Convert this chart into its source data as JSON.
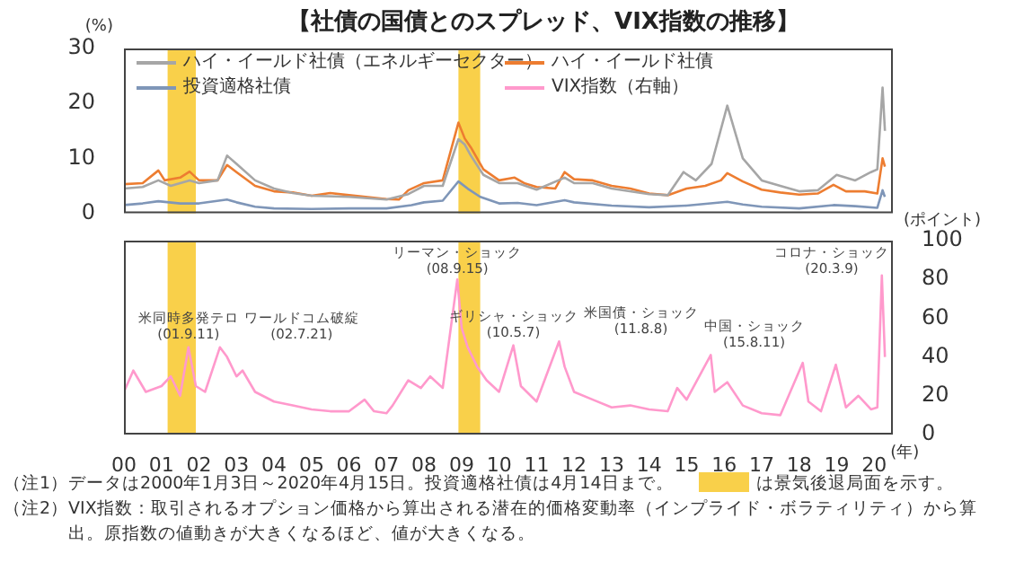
{
  "chart_data": [
    {
      "type": "line",
      "title": "【社債の国債とのスプレッド、VIX指数の推移】",
      "ylabel": "(%)",
      "xlim": [
        "2000-01-01",
        "2020-07-01"
      ],
      "ylim": [
        0,
        30
      ],
      "yticks": [
        0,
        10,
        20,
        30
      ],
      "tick_labels": "y",
      "legend": "top",
      "series": [
        {
          "name": "ハイ・イールド社債（エネルギーセクター）",
          "color": "#a6a6a6",
          "x": [
            "2000-01",
            "2000-07",
            "2000-12",
            "2001-04",
            "2001-10",
            "2002-01",
            "2002-07",
            "2002-10",
            "2003-01",
            "2003-07",
            "2004-01",
            "2004-07",
            "2005-01",
            "2006-01",
            "2007-01",
            "2007-08",
            "2008-01",
            "2008-07",
            "2008-12",
            "2009-02",
            "2009-04",
            "2009-08",
            "2010-01",
            "2010-07",
            "2011-01",
            "2011-10",
            "2012-01",
            "2012-07",
            "2013-01",
            "2014-01",
            "2014-07",
            "2014-12",
            "2015-04",
            "2015-09",
            "2016-02",
            "2016-07",
            "2017-01",
            "2017-07",
            "2018-01",
            "2018-07",
            "2019-01",
            "2019-07",
            "2019-12",
            "2020-02",
            "2020-03-23",
            "2020-04-15"
          ],
          "values": [
            4.5,
            4.8,
            6,
            5,
            6,
            5.5,
            6,
            10.5,
            9,
            6,
            4.5,
            3.7,
            3.2,
            3,
            2.5,
            3.5,
            5,
            5,
            13.5,
            12.5,
            10.5,
            7,
            5.5,
            5.5,
            4.3,
            6.5,
            5.5,
            5.5,
            4.5,
            3.5,
            3.3,
            7.5,
            6,
            9,
            19.6,
            10,
            6,
            5,
            4,
            4.2,
            7,
            6,
            7.5,
            8,
            22.9,
            15
          ]
        },
        {
          "name": "ハイ・イールド社債",
          "color": "#ed7d31",
          "x": [
            "2000-01",
            "2000-07",
            "2000-12",
            "2001-02",
            "2001-07",
            "2001-10",
            "2002-01",
            "2002-07",
            "2002-10",
            "2003-01",
            "2003-07",
            "2004-01",
            "2004-07",
            "2005-01",
            "2005-07",
            "2006-01",
            "2007-01",
            "2007-05",
            "2007-08",
            "2008-01",
            "2008-07",
            "2008-12",
            "2009-02",
            "2009-04",
            "2009-08",
            "2010-01",
            "2010-06",
            "2010-09",
            "2011-01",
            "2011-07",
            "2011-10",
            "2012-01",
            "2012-07",
            "2013-01",
            "2013-07",
            "2014-01",
            "2014-07",
            "2015-01",
            "2015-07",
            "2015-12",
            "2016-02",
            "2016-07",
            "2017-01",
            "2017-07",
            "2018-01",
            "2018-07",
            "2018-12",
            "2019-04",
            "2019-10",
            "2020-02",
            "2020-03-23",
            "2020-04-15"
          ],
          "values": [
            5.3,
            5.5,
            7.8,
            6,
            6.5,
            7.6,
            6,
            6,
            8.8,
            7.5,
            5,
            4,
            3.8,
            3.2,
            3.7,
            3.3,
            2.6,
            2.5,
            4.2,
            5.5,
            6,
            16.5,
            13.6,
            12,
            8,
            6,
            6.5,
            5.5,
            4.8,
            4.5,
            7.5,
            6.2,
            6,
            5,
            4.5,
            3.6,
            3.3,
            4.5,
            5,
            6,
            7.3,
            5.8,
            4.3,
            3.8,
            3.4,
            3.6,
            5.2,
            4,
            4,
            3.6,
            10,
            8.5
          ]
        },
        {
          "name": "投資適格社債",
          "color": "#7f96b8",
          "x": [
            "2000-01",
            "2000-07",
            "2000-12",
            "2001-07",
            "2002-01",
            "2002-10",
            "2003-01",
            "2003-07",
            "2004-01",
            "2005-01",
            "2006-01",
            "2007-01",
            "2007-09",
            "2008-01",
            "2008-07",
            "2008-12",
            "2009-03",
            "2009-07",
            "2010-01",
            "2010-07",
            "2011-01",
            "2011-10",
            "2012-01",
            "2013-01",
            "2014-01",
            "2015-01",
            "2016-02",
            "2016-07",
            "2017-01",
            "2018-01",
            "2018-12",
            "2019-07",
            "2020-02",
            "2020-03-23",
            "2020-04-14"
          ],
          "values": [
            1.5,
            1.8,
            2.2,
            1.8,
            1.8,
            2.5,
            2,
            1.2,
            0.9,
            0.8,
            0.9,
            0.9,
            1.5,
            2,
            2.3,
            5.8,
            4.5,
            3,
            1.8,
            1.9,
            1.5,
            2.4,
            2,
            1.4,
            1.1,
            1.4,
            2.1,
            1.6,
            1.2,
            0.9,
            1.5,
            1.3,
            1,
            4.2,
            3
          ]
        }
      ],
      "bands": [
        {
          "axis": "x",
          "from": "2001-03",
          "to": "2001-12",
          "label": null,
          "color": "#f9d04a"
        },
        {
          "axis": "x",
          "from": "2008-12",
          "to": "2009-07",
          "label": null,
          "color": "#f9d04a"
        }
      ]
    },
    {
      "type": "line",
      "ylabel": "(ポイント)",
      "xlabel": "(年)",
      "xlim": [
        "2000-01-01",
        "2020-07-01"
      ],
      "xticks": [
        {
          "value": "2000",
          "label": "00"
        },
        {
          "value": "2001",
          "label": "01"
        },
        {
          "value": "2002",
          "label": "02"
        },
        {
          "value": "2003",
          "label": "03"
        },
        {
          "value": "2004",
          "label": "04"
        },
        {
          "value": "2005",
          "label": "05"
        },
        {
          "value": "2006",
          "label": "06"
        },
        {
          "value": "2007",
          "label": "07"
        },
        {
          "value": "2008",
          "label": "08"
        },
        {
          "value": "2009",
          "label": "09"
        },
        {
          "value": "2010",
          "label": "10"
        },
        {
          "value": "2011",
          "label": "11"
        },
        {
          "value": "2012",
          "label": "12"
        },
        {
          "value": "2013",
          "label": "13"
        },
        {
          "value": "2014",
          "label": "14"
        },
        {
          "value": "2015",
          "label": "15"
        },
        {
          "value": "2016",
          "label": "16"
        },
        {
          "value": "2017",
          "label": "17"
        },
        {
          "value": "2018",
          "label": "18"
        },
        {
          "value": "2019",
          "label": "19"
        },
        {
          "value": "2020",
          "label": "20"
        }
      ],
      "ylim": [
        0,
        100
      ],
      "yticks": [
        0,
        20,
        40,
        60,
        80,
        100
      ],
      "legend": "top",
      "series": [
        {
          "name": "VIX指数（右軸）",
          "color": "#ff99cc",
          "x": [
            "2000-01",
            "2000-04",
            "2000-08",
            "2001-01",
            "2001-04",
            "2001-07",
            "2001-09-20",
            "2001-12",
            "2002-03",
            "2002-07-23",
            "2002-10",
            "2003-01",
            "2003-03",
            "2003-07",
            "2004-01",
            "2004-07",
            "2005-01",
            "2005-07",
            "2006-01",
            "2006-06",
            "2006-09",
            "2007-01",
            "2007-03",
            "2007-08",
            "2007-12",
            "2008-03",
            "2008-07",
            "2008-11-20",
            "2009-01",
            "2009-03",
            "2009-06",
            "2009-09",
            "2010-01",
            "2010-05-20",
            "2010-08",
            "2011-01",
            "2011-08-08",
            "2011-10",
            "2012-01",
            "2012-07",
            "2013-01",
            "2013-07",
            "2014-01",
            "2014-07",
            "2014-10",
            "2015-01",
            "2015-08-24",
            "2015-10",
            "2016-02",
            "2016-07",
            "2017-01",
            "2017-07",
            "2018-02-05",
            "2018-04",
            "2018-08",
            "2018-12-24",
            "2019-04",
            "2019-08",
            "2019-12",
            "2020-02",
            "2020-03-16",
            "2020-04-15"
          ],
          "values": [
            22,
            33,
            22,
            25,
            30,
            20,
            45,
            25,
            22,
            45,
            40,
            30,
            33,
            22,
            17,
            15,
            13,
            12,
            12,
            18,
            12,
            11,
            15,
            28,
            24,
            30,
            24,
            80,
            55,
            45,
            35,
            28,
            22,
            46,
            25,
            17,
            48,
            35,
            22,
            18,
            14,
            15,
            13,
            12,
            24,
            18,
            41,
            22,
            27,
            15,
            11,
            10,
            37,
            17,
            12,
            36,
            14,
            20,
            13,
            14,
            82,
            40
          ]
        }
      ],
      "bands": [
        {
          "axis": "x",
          "from": "2001-03",
          "to": "2001-12",
          "label": null,
          "color": "#f9d04a"
        },
        {
          "axis": "x",
          "from": "2008-12",
          "to": "2009-07",
          "label": null,
          "color": "#f9d04a"
        }
      ],
      "annotations": [
        {
          "text": "米同時多発テロ\n(01.9.11)",
          "x": "2001-09-20",
          "y": 45
        },
        {
          "text": "ワールドコム破綻\n(02.7.21)",
          "x": "2002-07-23",
          "y": 45
        },
        {
          "text": "リーマン・ショック\n(08.9.15)",
          "x": "2008-11-20",
          "y": 80
        },
        {
          "text": "ギリシャ・ショック\n(10.5.7)",
          "x": "2010-05-20",
          "y": 46
        },
        {
          "text": "米国債・ショック\n(11.8.8)",
          "x": "2011-08-08",
          "y": 48
        },
        {
          "text": "中国・ショック\n(15.8.11)",
          "x": "2015-08-24",
          "y": 41
        },
        {
          "text": "コロナ・ショック\n(20.3.9)",
          "x": "2020-03-16",
          "y": 82
        },
        "（注1）データは2000年1月3日～2020年4月15日。投資適格社債は4月14日まで。",
        "は景気後退局面を示す。",
        "（注2）VIX指数：取引されるオプション価格から算出される潜在的価格変動率（インプライド・ボラティリティ）から算出。原指数の値動きが大きくなるほど、値が大きくなる。"
      ]
    }
  ]
}
